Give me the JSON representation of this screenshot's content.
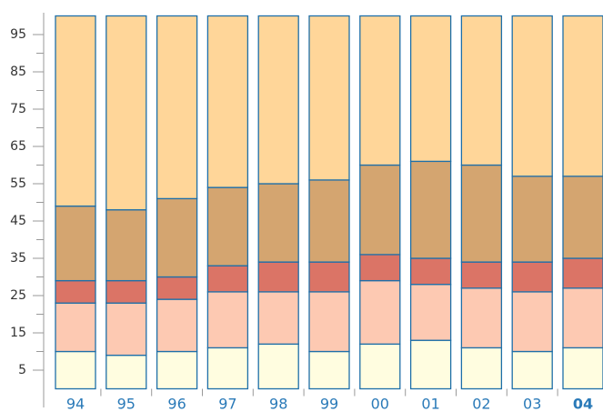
{
  "chart_data": {
    "type": "stacked_bar",
    "categories": [
      "94",
      "95",
      "96",
      "97",
      "98",
      "99",
      "00",
      "01",
      "02",
      "03",
      "04"
    ],
    "series": [
      {
        "color": "#fffde0",
        "values": [
          10,
          9,
          10,
          11,
          12,
          10,
          12,
          13,
          11,
          10,
          11
        ]
      },
      {
        "color": "#fdc9b2",
        "values": [
          13,
          14,
          14,
          15,
          14,
          16,
          17,
          15,
          16,
          16,
          16
        ]
      },
      {
        "color": "#db7466",
        "values": [
          6,
          6,
          6,
          7,
          8,
          8,
          7,
          7,
          7,
          8,
          8
        ]
      },
      {
        "color": "#d4a570",
        "values": [
          20,
          19,
          21,
          21,
          21,
          22,
          24,
          26,
          26,
          23,
          22
        ]
      },
      {
        "color": "#ffd699",
        "values": [
          51,
          52,
          49,
          46,
          45,
          44,
          40,
          39,
          40,
          43,
          43
        ]
      }
    ],
    "ylim": [
      0,
      100
    ],
    "yticks": [
      5,
      15,
      25,
      35,
      45,
      55,
      65,
      75,
      85,
      95
    ],
    "yminor_ticks": [
      10,
      20,
      30,
      40,
      50,
      60,
      70,
      80,
      90
    ],
    "bar_edge_color": "#1e6fa8",
    "bold_category_index": 10
  }
}
